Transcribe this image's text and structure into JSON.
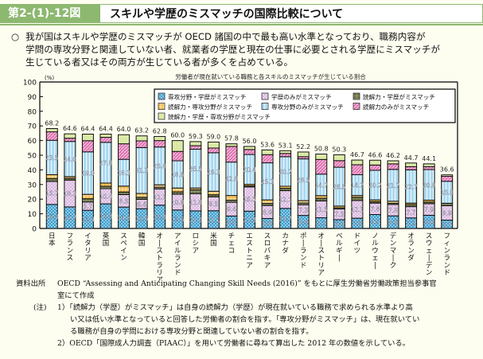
{
  "header": {
    "figure_number": "第2-(1)-12図",
    "title": "スキルや学歴のミスマッチの国際比較について"
  },
  "summary": {
    "bullet": "○",
    "lines": [
      "我が国はスキルや学歴のミスマッチが OECD 諸国の中で最も高い水準となっており、職務内容が",
      "学問の専攻分野と関連していない者、就業者の学歴と現在の仕事に必要とされる学歴にミスマッチが",
      "生じている者又はその両方が生じている者が多くを占めている。"
    ]
  },
  "chart_data": {
    "type": "bar",
    "stacked": true,
    "title": "労働者が現在就いている職務と各スキルのミスマッチが生じている割合",
    "ylabel": "(%)",
    "xlabel": "",
    "ylim": [
      0,
      100
    ],
    "yticks": [
      0,
      10,
      20,
      30,
      40,
      50,
      60,
      70,
      80,
      90,
      100
    ],
    "legend_position": "top-right",
    "categories": [
      "日本",
      "フランス",
      "イタリア",
      "英国",
      "スペイン",
      "韓国",
      "オーストラリア",
      "アイルランド",
      "ロシア",
      "米国",
      "チェコ",
      "エストニア",
      "スロバキア",
      "カナダ",
      "ポーランド",
      "オーストリア",
      "ベルギー",
      "ドイツ",
      "ノルウェー",
      "デンマーク",
      "オランダ",
      "スウェーデン",
      "フィンランド"
    ],
    "totals": [
      68.2,
      64.6,
      64.4,
      64.4,
      64.0,
      63.2,
      62.8,
      60.0,
      59.3,
      59.0,
      57.8,
      56.0,
      53.6,
      53.1,
      52.2,
      50.8,
      50.3,
      46.7,
      46.6,
      46.2,
      44.7,
      44.1,
      36.6
    ],
    "series": [
      {
        "name": "専攻分野・学歴がミスマッチ",
        "color": "#3a9fd0",
        "pattern": "check",
        "values": [
          16.4,
          14.7,
          12.4,
          16.8,
          14.6,
          13.5,
          15.9,
          12.6,
          12.0,
          12.1,
          8.5,
          11.8,
          6.8,
          13.7,
          8.9,
          7.3,
          6.0,
          7.0,
          9.5,
          8.6,
          7.2,
          9.0,
          5.7
        ],
        "labeled": [
          true,
          true,
          true,
          true,
          true,
          true,
          true,
          true,
          true,
          true,
          true,
          true,
          true,
          true,
          true,
          true,
          true,
          true,
          true,
          true,
          true,
          true,
          true
        ]
      },
      {
        "name": "学歴のみがミスマッチ",
        "color": "#d9b8e0",
        "pattern": "check",
        "values": [
          15.7,
          18.3,
          5.7,
          10.4,
          8.5,
          6.4,
          11.1,
          10.8,
          11.8,
          9.5,
          9.4,
          16.5,
          8.9,
          12.1,
          7.3,
          11.5,
          7.3,
          12.1,
          7.8,
          7.8,
          7.7,
          7.9,
          9.9
        ],
        "labeled": [
          true,
          true,
          true,
          true,
          true,
          true,
          true,
          true,
          true,
          true,
          true,
          true,
          true,
          true,
          true,
          true,
          true,
          true,
          true,
          true,
          true,
          true,
          true
        ]
      },
      {
        "name": "読解力・学歴がミスマッチ",
        "color": "#6f7a4a",
        "pattern": "grid",
        "values": [
          2.0,
          1.2,
          2.2,
          1.6,
          1.8,
          1.4,
          1.2,
          1.6,
          2.6,
          1.4,
          1.4,
          0.8,
          1.4,
          1.6,
          1.2,
          1.8,
          0.8,
          2.2,
          1.0,
          0.8,
          1.4,
          1.2,
          1.6
        ],
        "labeled": [
          false,
          false,
          false,
          false,
          false,
          false,
          false,
          false,
          false,
          false,
          false,
          false,
          false,
          false,
          false,
          false,
          false,
          false,
          false,
          false,
          false,
          false,
          false
        ]
      },
      {
        "name": "読解力・専攻分野がミスマッチ",
        "color": "#f5b840",
        "pattern": "plus",
        "values": [
          2.6,
          1.2,
          3.0,
          2.2,
          4.0,
          2.6,
          1.6,
          2.6,
          1.2,
          2.4,
          3.2,
          1.0,
          2.4,
          1.4,
          1.6,
          1.8,
          1.2,
          1.2,
          1.2,
          1.4,
          1.0,
          1.2,
          0.0
        ],
        "labeled": [
          false,
          false,
          false,
          false,
          false,
          false,
          false,
          false,
          false,
          false,
          false,
          false,
          false,
          false,
          false,
          false,
          false,
          false,
          false,
          false,
          false,
          false,
          false
        ]
      },
      {
        "name": "専攻分野のみがミスマッチ",
        "color": "#a8d8f0",
        "pattern": "vstripe",
        "values": [
          23.5,
          24.0,
          29.0,
          27.8,
          18.3,
          31.3,
          25.8,
          18.6,
          26.5,
          26.3,
          22.8,
          20.4,
          25.3,
          20.2,
          28.5,
          14.7,
          26.5,
          14.2,
          20.2,
          21.7,
          22.7,
          20.9,
          15.0
        ],
        "labeled": [
          true,
          true,
          true,
          true,
          true,
          true,
          true,
          true,
          true,
          true,
          true,
          true,
          true,
          true,
          true,
          true,
          true,
          true,
          true,
          true,
          true,
          true,
          true
        ]
      },
      {
        "name": "読解力のみがミスマッチ",
        "color": "#e070b0",
        "pattern": "hatch",
        "values": [
          5.8,
          2.2,
          7.6,
          3.4,
          10.6,
          4.6,
          4.4,
          6.4,
          2.4,
          3.2,
          10.7,
          3.4,
          5.6,
          2.2,
          1.5,
          10.0,
          4.5,
          6.8,
          3.6,
          3.8,
          2.2,
          2.0,
          3.4
        ],
        "labeled": [
          false,
          false,
          false,
          false,
          false,
          false,
          false,
          false,
          false,
          false,
          false,
          false,
          false,
          false,
          false,
          false,
          false,
          false,
          false,
          false,
          false,
          false,
          false
        ]
      },
      {
        "name": "読解力・学歴・専攻分野がミスマッチ",
        "color": "#d8e8a0",
        "pattern": "grid",
        "values": [
          2.2,
          3.0,
          4.5,
          2.2,
          6.2,
          3.4,
          2.8,
          7.4,
          2.8,
          4.1,
          1.8,
          2.1,
          3.2,
          1.9,
          3.2,
          3.7,
          4.0,
          3.2,
          3.3,
          2.1,
          2.5,
          1.9,
          1.0
        ],
        "labeled": [
          false,
          false,
          false,
          false,
          false,
          false,
          false,
          false,
          false,
          false,
          false,
          false,
          false,
          false,
          false,
          false,
          false,
          false,
          false,
          false,
          false,
          false,
          false
        ]
      }
    ]
  },
  "footer": {
    "source_label": "資料出所",
    "source_text": "OECD “Assessing and Anticipating Changing Skill Needs (2016)” をもとに厚生労働省労働政策担当参事官",
    "source_text2": "室にて作成",
    "note_label": "(注)",
    "note1_lines": [
      "1）「読解力（学歴）がミスマッチ」は自身の読解力（学歴）が現在就いている職務で求められる水準より高",
      "い又は低い水準となっていると回答した労働者の割合を指す。「専攻分野がミスマッチ」は、現在就いてい",
      "る職務が自身の学問における専攻分野と関連していない者の割合を指す。"
    ],
    "note2": "2）OECD「国際成人力調査（PIAAC）」を用いて労働者に尋ねて算出した 2012 年の数値を示している。"
  }
}
